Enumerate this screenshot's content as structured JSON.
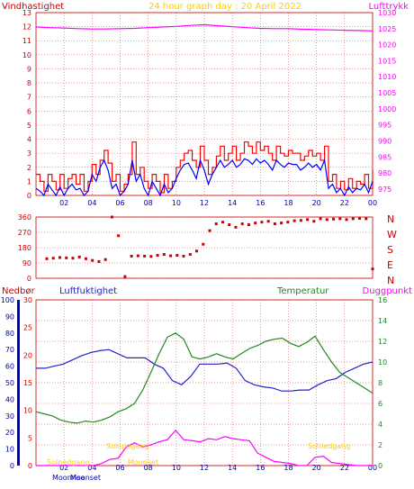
{
  "header": {
    "title": "24 hour graph day : 20 April 2022",
    "left_label": "Vindhastighet",
    "right_label": "Lufttrykk"
  },
  "lower": {
    "nedbor_label": "Nedbør",
    "humidity_label": "Luftfuktighet",
    "temp_label": "Temperatur",
    "dew_label": "Duggpunkt",
    "sunset_label": "Solnedgang",
    "sunrise_label": "Soloppgang",
    "moonrise_label": "Moonrise",
    "moonset_label": "Moonset",
    "moonrise_text": "Moonrise"
  },
  "colors": {
    "wind": "#ff0000",
    "gust": "#0000ff",
    "pressure": "#ff00ff",
    "direction": "#cc0000",
    "humidity": "#2222cc",
    "temperature": "#228822",
    "dew": "#ff00ff",
    "sun": "#ffcc00",
    "grid": "#cc0000"
  },
  "chart_data": [
    {
      "type": "line",
      "title": "24 hour graph day : 20 April 2022",
      "x_ticks": [
        "02",
        "04",
        "06",
        "08",
        "10",
        "12",
        "14",
        "16",
        "18",
        "20",
        "22",
        "00"
      ],
      "left_axis": {
        "label": "Vindhastighet",
        "ticks": [
          0,
          1,
          2,
          3,
          4,
          5,
          6,
          7,
          8,
          9,
          10,
          11,
          12,
          13
        ],
        "ylim": [
          0,
          13
        ]
      },
      "right_axis": {
        "label": "Lufttrykk",
        "ticks": [
          975,
          980,
          985,
          990,
          995,
          1000,
          1005,
          1010,
          1015,
          1020,
          1025,
          1030
        ],
        "ylim": [
          973,
          1030
        ]
      },
      "series": [
        {
          "axis": "left",
          "color": "#ff0000",
          "values": [
            1.5,
            1,
            0.3,
            1.5,
            1,
            0.4,
            1.5,
            0.5,
            1.2,
            1.5,
            0.8,
            1.5,
            0.3,
            1,
            2.2,
            1.5,
            2.5,
            3.2,
            2.3,
            1,
            1.5,
            0.3,
            0.8,
            1.5,
            3.8,
            1.5,
            2,
            1,
            0.5,
            1.5,
            1,
            0.2,
            1.5,
            0.5,
            1,
            2,
            2.5,
            3,
            3.2,
            2.5,
            2,
            3.5,
            2.5,
            1.5,
            2,
            2.8,
            3.5,
            2.5,
            3,
            3.5,
            2.5,
            3,
            3.8,
            3.5,
            3,
            3.8,
            3.2,
            3.5,
            3,
            2.5,
            3.5,
            3,
            2.8,
            3.2,
            3,
            3,
            2.5,
            2.8,
            3.2,
            2.8,
            3,
            2.5,
            3.5,
            1,
            1.5,
            0.5,
            1,
            0.4,
            1.2,
            0.5,
            1,
            0.8,
            1.5,
            0.5,
            1.8
          ]
        },
        {
          "axis": "left",
          "color": "#0000ff",
          "values": [
            0.5,
            0.3,
            0,
            0.8,
            0.4,
            0,
            0.6,
            0,
            0.5,
            0.8,
            0.4,
            0.5,
            0,
            0.3,
            1.5,
            1,
            2,
            2.5,
            1.8,
            0.5,
            0.8,
            0,
            0.3,
            0.8,
            2.5,
            1,
            1.5,
            0.5,
            0,
            1,
            0.5,
            0,
            0.8,
            0.2,
            0.5,
            1.2,
            1.8,
            2.2,
            2.3,
            1.8,
            1.2,
            2.5,
            1.8,
            0.8,
            1.5,
            2,
            2.5,
            2,
            2.2,
            2.5,
            2,
            2.2,
            2.6,
            2.5,
            2.2,
            2.6,
            2.3,
            2.5,
            2.2,
            1.8,
            2.5,
            2.2,
            2,
            2.3,
            2.2,
            2.2,
            1.8,
            2,
            2.3,
            2,
            2.2,
            1.8,
            2.5,
            0.5,
            0.8,
            0.2,
            0.5,
            0,
            0.6,
            0.2,
            0.5,
            0.4,
            0.8,
            0.2,
            1
          ]
        },
        {
          "axis": "right",
          "color": "#ff00ff",
          "values": [
            1025.5,
            1025.3,
            1025.2,
            1025,
            1024.9,
            1024.9,
            1025,
            1025.1,
            1025.3,
            1025.5,
            1025.7,
            1026,
            1026.2,
            1025.9,
            1025.6,
            1025.3,
            1025.1,
            1025,
            1025,
            1024.8,
            1024.7,
            1024.6,
            1024.5,
            1024.4,
            1024.3
          ]
        }
      ]
    },
    {
      "type": "scatter",
      "title": "",
      "left_axis": {
        "ticks": [
          0,
          90,
          180,
          270,
          360
        ],
        "ylim": [
          0,
          360
        ]
      },
      "right_labels": [
        "N",
        "W",
        "S",
        "E",
        "N"
      ],
      "series": [
        {
          "color": "#cc0000",
          "values": [
            115,
            118,
            122,
            120,
            118,
            125,
            115,
            105,
            98,
            110,
            360,
            250,
            10,
            130,
            132,
            130,
            128,
            135,
            140,
            132,
            135,
            130,
            140,
            160,
            200,
            280,
            320,
            330,
            315,
            300,
            320,
            315,
            325,
            330,
            335,
            320,
            325,
            330,
            338,
            340,
            345,
            335,
            350,
            345,
            348,
            350,
            345,
            350,
            352,
            350,
            55
          ]
        }
      ]
    },
    {
      "type": "line",
      "title": "",
      "left_axes": [
        {
          "label": "Nedbør",
          "ticks": [
            0,
            10,
            20,
            30,
            40,
            50,
            60,
            70,
            80,
            90,
            100
          ],
          "ylim": [
            0,
            100
          ]
        },
        {
          "label": "Luftfuktighet",
          "ticks": [
            0,
            5,
            10,
            15,
            20,
            25,
            30
          ],
          "ylim": [
            0,
            30
          ]
        }
      ],
      "right_axis": {
        "ticks": [
          0,
          2,
          4,
          6,
          8,
          10,
          12,
          14,
          16
        ],
        "ylim": [
          0,
          16
        ]
      },
      "x_ticks": [
        "02",
        "04",
        "06",
        "08",
        "10",
        "12",
        "14",
        "16",
        "18",
        "20",
        "22",
        "00"
      ],
      "series": [
        {
          "name": "Luftfuktighet",
          "color": "#2222cc",
          "axis": "right",
          "values": [
            9.4,
            9.4,
            9.6,
            9.8,
            10.2,
            10.6,
            10.9,
            11.1,
            11.2,
            10.8,
            10.4,
            10.4,
            10.4,
            9.8,
            9.4,
            8.2,
            7.8,
            8.6,
            9.8,
            9.8,
            9.8,
            9.9,
            9.4,
            8.2,
            7.8,
            7.6,
            7.5,
            7.2,
            7.2,
            7.3,
            7.3,
            7.8,
            8.2,
            8.4,
            9.0,
            9.4,
            9.8,
            10.0
          ]
        },
        {
          "name": "Temperatur",
          "color": "#228822",
          "axis": "right",
          "values": [
            5.2,
            5.0,
            4.8,
            4.4,
            4.2,
            4.1,
            4.3,
            4.2,
            4.4,
            4.7,
            5.2,
            5.5,
            6.0,
            7.3,
            9.0,
            10.8,
            12.4,
            12.8,
            12.2,
            10.5,
            10.3,
            10.5,
            10.8,
            10.5,
            10.3,
            10.8,
            11.3,
            11.6,
            12.0,
            12.2,
            12.3,
            11.8,
            11.5,
            11.9,
            12.5,
            11.2,
            10.0,
            9.0,
            8.5,
            8.0,
            7.5,
            7.0
          ]
        },
        {
          "name": "Duggpunkt",
          "color": "#ff00ff",
          "axis": "right",
          "values": [
            0,
            0,
            0,
            0,
            0,
            0,
            0,
            0,
            0.2,
            0.6,
            0.7,
            1.8,
            2.2,
            1.8,
            2.0,
            2.3,
            2.5,
            3.4,
            2.5,
            2.4,
            2.3,
            2.6,
            2.5,
            2.8,
            2.6,
            2.5,
            2.4,
            1.2,
            0.8,
            0.4,
            0.3,
            0.2,
            0,
            0,
            0.8,
            0.9,
            0.3,
            0.2,
            0.1,
            0,
            0,
            0
          ]
        }
      ]
    }
  ]
}
